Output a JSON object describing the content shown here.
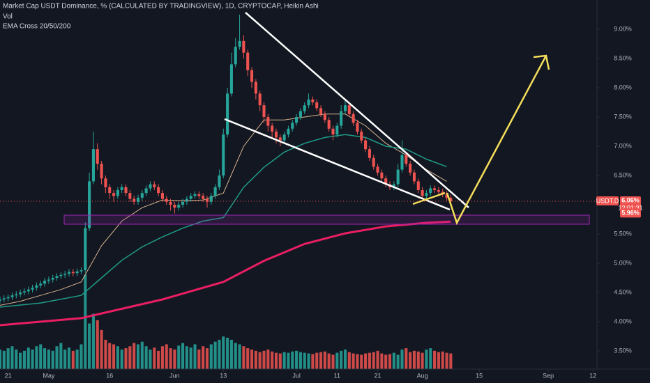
{
  "chart_data": {
    "type": "candlestick",
    "title": "Market Cap USDT Dominance, % (CALCULATED BY TRADINGVIEW), 1D, CRYPTOCAP, Heikin Ashi",
    "indicators": [
      "Vol",
      "EMA Cross 20/50/200"
    ],
    "up_color": "#26a69a",
    "down_color": "#ef5350",
    "open": [
      4.36,
      4.38,
      4.4,
      4.42,
      4.45,
      4.47,
      4.5,
      4.52,
      4.55,
      4.58,
      4.62,
      4.65,
      4.7,
      4.72,
      4.75,
      4.78,
      4.8,
      4.82,
      4.85,
      4.83,
      4.86,
      4.88,
      5.6,
      6.4,
      6.95,
      6.7,
      6.45,
      6.3,
      6.2,
      6.15,
      6.25,
      6.3,
      6.2,
      6.1,
      6.05,
      6.12,
      6.2,
      6.28,
      6.35,
      6.3,
      6.2,
      6.1,
      6.05,
      6.0,
      5.95,
      6.0,
      6.05,
      6.1,
      6.15,
      6.18,
      6.15,
      6.1,
      6.05,
      6.15,
      6.3,
      6.5,
      7.2,
      7.9,
      8.4,
      8.7,
      8.8,
      8.6,
      8.3,
      8.1,
      7.9,
      7.7,
      7.5,
      7.35,
      7.25,
      7.15,
      7.1,
      7.2,
      7.3,
      7.4,
      7.5,
      7.6,
      7.7,
      7.8,
      7.75,
      7.65,
      7.55,
      7.45,
      7.3,
      7.2,
      7.35,
      7.6,
      7.7,
      7.55,
      7.4,
      7.25,
      7.1,
      6.95,
      6.8,
      6.65,
      6.55,
      6.45,
      6.35,
      6.3,
      6.35,
      6.6,
      6.85,
      6.7,
      6.55,
      6.4,
      6.25,
      6.15,
      6.2,
      6.28,
      6.25,
      6.22,
      6.18,
      6.12
    ],
    "high": [
      4.43,
      4.45,
      4.47,
      4.5,
      4.52,
      4.55,
      4.57,
      4.6,
      4.63,
      4.67,
      4.7,
      4.75,
      4.77,
      4.8,
      4.83,
      4.85,
      4.87,
      4.9,
      4.9,
      4.91,
      4.93,
      5.7,
      6.55,
      7.25,
      7.05,
      6.75,
      6.5,
      6.35,
      6.25,
      6.3,
      6.35,
      6.35,
      6.25,
      6.15,
      6.17,
      6.25,
      6.33,
      6.4,
      6.4,
      6.35,
      6.25,
      6.15,
      6.1,
      6.05,
      6.05,
      6.1,
      6.15,
      6.2,
      6.23,
      6.23,
      6.2,
      6.15,
      6.2,
      6.35,
      6.6,
      7.3,
      8.0,
      8.6,
      8.85,
      9.25,
      8.9,
      8.65,
      8.35,
      8.15,
      7.95,
      7.75,
      7.55,
      7.4,
      7.3,
      7.2,
      7.25,
      7.35,
      7.45,
      7.55,
      7.65,
      7.75,
      7.9,
      7.85,
      7.8,
      7.7,
      7.6,
      7.5,
      7.35,
      7.4,
      7.7,
      7.8,
      7.75,
      7.6,
      7.45,
      7.3,
      7.15,
      7.0,
      6.85,
      6.7,
      6.6,
      6.5,
      6.4,
      6.4,
      6.7,
      7.1,
      6.9,
      6.75,
      6.6,
      6.45,
      6.3,
      6.25,
      6.33,
      6.33,
      6.3,
      6.27,
      6.23,
      6.17
    ],
    "low": [
      4.31,
      4.33,
      4.35,
      4.37,
      4.4,
      4.42,
      4.45,
      4.47,
      4.5,
      4.53,
      4.57,
      4.6,
      4.65,
      4.67,
      4.7,
      4.73,
      4.75,
      4.77,
      4.78,
      4.78,
      4.81,
      4.83,
      5.55,
      6.35,
      6.6,
      6.35,
      6.2,
      6.1,
      6.05,
      6.1,
      6.2,
      6.15,
      6.05,
      6.0,
      6.0,
      6.07,
      6.15,
      6.23,
      6.25,
      6.15,
      6.05,
      6.0,
      5.9,
      5.85,
      5.9,
      5.95,
      6.0,
      6.05,
      6.1,
      6.1,
      6.05,
      5.95,
      6.0,
      6.1,
      6.25,
      6.45,
      7.15,
      7.85,
      8.35,
      8.65,
      8.5,
      8.2,
      8.0,
      7.8,
      7.6,
      7.4,
      7.25,
      7.15,
      7.05,
      7.0,
      7.05,
      7.15,
      7.25,
      7.35,
      7.45,
      7.55,
      7.65,
      7.7,
      7.6,
      7.5,
      7.4,
      7.25,
      7.1,
      7.15,
      7.3,
      7.55,
      7.5,
      7.35,
      7.2,
      7.05,
      6.9,
      6.75,
      6.6,
      6.5,
      6.4,
      6.3,
      6.25,
      6.25,
      6.3,
      6.55,
      6.65,
      6.5,
      6.35,
      6.2,
      6.1,
      6.1,
      6.15,
      6.2,
      6.17,
      6.13,
      6.07,
      6.01
    ],
    "close": [
      4.38,
      4.4,
      4.42,
      4.45,
      4.47,
      4.5,
      4.52,
      4.55,
      4.58,
      4.62,
      4.65,
      4.7,
      4.72,
      4.75,
      4.78,
      4.8,
      4.82,
      4.85,
      4.83,
      4.86,
      4.88,
      5.6,
      6.4,
      6.95,
      6.7,
      6.45,
      6.3,
      6.2,
      6.15,
      6.25,
      6.3,
      6.2,
      6.1,
      6.05,
      6.12,
      6.2,
      6.28,
      6.35,
      6.3,
      6.2,
      6.1,
      6.05,
      6.0,
      5.95,
      6.0,
      6.05,
      6.1,
      6.15,
      6.18,
      6.15,
      6.1,
      6.05,
      6.15,
      6.3,
      6.5,
      7.2,
      7.9,
      8.4,
      8.7,
      8.8,
      8.6,
      8.3,
      8.1,
      7.9,
      7.7,
      7.5,
      7.35,
      7.25,
      7.15,
      7.1,
      7.2,
      7.3,
      7.4,
      7.5,
      7.6,
      7.7,
      7.8,
      7.75,
      7.65,
      7.55,
      7.45,
      7.3,
      7.2,
      7.35,
      7.6,
      7.7,
      7.55,
      7.4,
      7.25,
      7.1,
      6.95,
      6.8,
      6.65,
      6.55,
      6.45,
      6.35,
      6.3,
      6.35,
      6.6,
      6.85,
      6.7,
      6.55,
      6.4,
      6.25,
      6.15,
      6.2,
      6.28,
      6.25,
      6.22,
      6.18,
      6.12,
      6.06
    ],
    "volume": [
      30,
      28,
      32,
      35,
      30,
      25,
      28,
      33,
      30,
      35,
      38,
      32,
      30,
      28,
      35,
      40,
      30,
      33,
      28,
      30,
      38,
      145,
      70,
      85,
      75,
      60,
      45,
      40,
      38,
      35,
      30,
      32,
      35,
      40,
      38,
      42,
      35,
      30,
      33,
      28,
      35,
      38,
      32,
      30,
      36,
      40,
      35,
      33,
      38,
      30,
      35,
      32,
      38,
      42,
      45,
      50,
      48,
      45,
      40,
      38,
      35,
      32,
      30,
      28,
      26,
      28,
      30,
      27,
      25,
      24,
      26,
      25,
      27,
      28,
      26,
      25,
      24,
      23,
      25,
      26,
      27,
      24,
      22,
      25,
      28,
      30,
      26,
      24,
      23,
      22,
      24,
      25,
      26,
      28,
      24,
      22,
      23,
      25,
      22,
      30,
      32,
      26,
      28,
      27,
      25,
      30,
      32,
      28,
      26,
      27,
      25,
      24
    ],
    "vlim": [
      0,
      155
    ],
    "series": [
      {
        "color": "#d7b48e",
        "x": [
          0,
          5,
          10,
          15,
          20,
          25,
          30,
          35,
          40,
          45,
          50,
          55,
          60,
          65,
          70,
          75,
          80,
          85,
          90,
          95,
          100,
          105,
          110
        ],
        "values": [
          4.28,
          4.35,
          4.45,
          4.55,
          4.68,
          5.3,
          5.72,
          5.95,
          6.08,
          6.07,
          6.08,
          6.2,
          7.0,
          7.45,
          7.45,
          7.5,
          7.55,
          7.55,
          7.35,
          7.05,
          6.85,
          6.6,
          6.4
        ]
      },
      {
        "color": "#1f9c87",
        "x": [
          0,
          10,
          20,
          25,
          30,
          35,
          40,
          45,
          50,
          55,
          60,
          65,
          70,
          75,
          80,
          85,
          90,
          95,
          100,
          105,
          110
        ],
        "values": [
          4.25,
          4.32,
          4.45,
          4.75,
          5.05,
          5.28,
          5.45,
          5.6,
          5.72,
          5.78,
          6.3,
          6.64,
          6.9,
          7.05,
          7.15,
          7.2,
          7.15,
          7.0,
          6.95,
          6.78,
          6.65
        ]
      },
      {
        "color": "#e91e63",
        "x": [
          0,
          20,
          40,
          55,
          65,
          75,
          85,
          95,
          105,
          111
        ],
        "values": [
          3.94,
          4.06,
          4.38,
          4.68,
          5.04,
          5.33,
          5.51,
          5.63,
          5.69,
          5.71
        ]
      }
    ],
    "xlim": [
      0,
      147
    ],
    "xticks": [
      {
        "value": 2,
        "label": "21"
      },
      {
        "value": 12,
        "label": "May"
      },
      {
        "value": 27,
        "label": "16"
      },
      {
        "value": 43,
        "label": "Jun"
      },
      {
        "value": 55,
        "label": "13"
      },
      {
        "value": 73,
        "label": "Jul"
      },
      {
        "value": 83,
        "label": "11"
      },
      {
        "value": 93,
        "label": "21"
      },
      {
        "value": 104,
        "label": "Aug"
      },
      {
        "value": 118,
        "label": "15"
      },
      {
        "value": 135,
        "label": "Sep"
      },
      {
        "value": 146,
        "label": "12"
      }
    ],
    "ylim": [
      3.19,
      9.5
    ],
    "yticks": [
      {
        "value": 3.5,
        "label": "3.50%"
      },
      {
        "value": 4,
        "label": "4.00%"
      },
      {
        "value": 4.5,
        "label": "4.50%"
      },
      {
        "value": 5,
        "label": "5.00%"
      },
      {
        "value": 5.5,
        "label": "5.50%"
      },
      {
        "value": 6.5,
        "label": "6.50%"
      },
      {
        "value": 7,
        "label": "7.00%"
      },
      {
        "value": 7.5,
        "label": "7.50%"
      },
      {
        "value": 8,
        "label": "8.00%"
      },
      {
        "value": 8.5,
        "label": "8.50%"
      },
      {
        "value": 9,
        "label": "9.00%"
      }
    ],
    "grid": false,
    "symbol": "USDT.D",
    "last_price": {
      "value": 6.06,
      "label": "6.06%"
    },
    "countdown": "12:01:31",
    "price_marker": {
      "value": 5.96,
      "label": "5.96%"
    }
  }
}
